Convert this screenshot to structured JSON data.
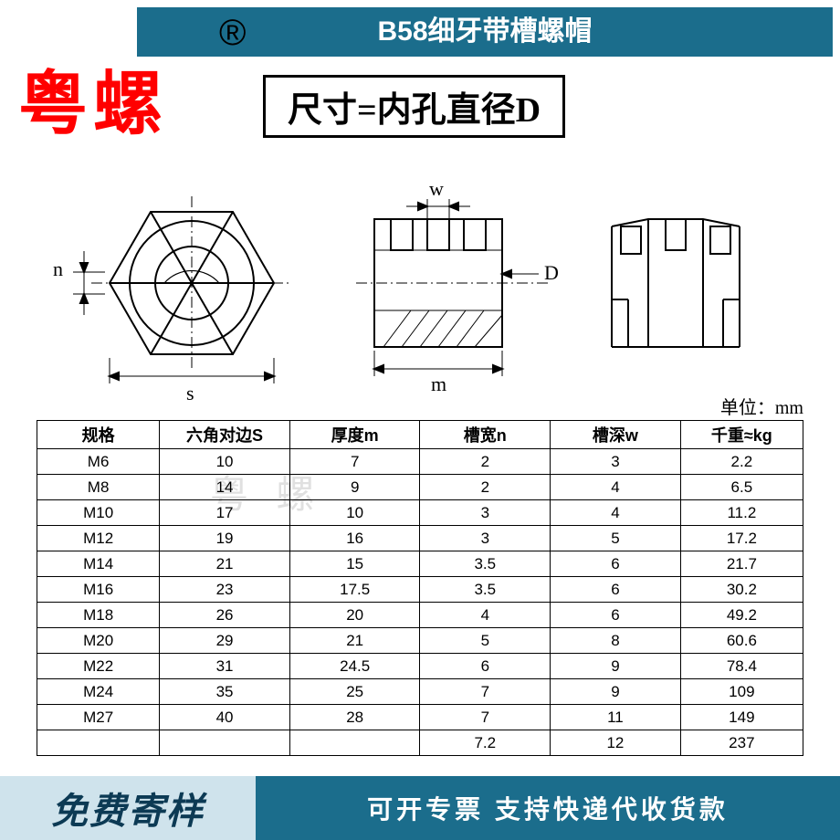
{
  "colors": {
    "header_bg": "#1b6d8c",
    "footer_left_bg": "#cfe3ec",
    "footer_left_text": "#0c3a54",
    "footer_right_bg": "#1b6d8c",
    "watermark_red": "#ff0000",
    "watermark_gray": "#e0e0e0",
    "border": "#000000"
  },
  "header": {
    "title": "B58细牙带槽螺帽",
    "reg": "®"
  },
  "watermark": {
    "red": "粤螺",
    "gray": "粤 螺"
  },
  "subtitle": "尺寸=内孔直径D",
  "diagram": {
    "labels": {
      "n": "n",
      "s": "s",
      "w": "w",
      "m": "m",
      "D": "D"
    }
  },
  "unit_label": "单位：mm",
  "table": {
    "columns": [
      "规格",
      "六角对边S",
      "厚度m",
      "槽宽n",
      "槽深w",
      "千重≈kg"
    ],
    "col_widths_pct": [
      16,
      17,
      17,
      17,
      17,
      16
    ],
    "rows": [
      [
        "M6",
        "10",
        "7",
        "2",
        "3",
        "2.2"
      ],
      [
        "M8",
        "14",
        "9",
        "2",
        "4",
        "6.5"
      ],
      [
        "M10",
        "17",
        "10",
        "3",
        "4",
        "11.2"
      ],
      [
        "M12",
        "19",
        "16",
        "3",
        "5",
        "17.2"
      ],
      [
        "M14",
        "21",
        "15",
        "3.5",
        "6",
        "21.7"
      ],
      [
        "M16",
        "23",
        "17.5",
        "3.5",
        "6",
        "30.2"
      ],
      [
        "M18",
        "26",
        "20",
        "4",
        "6",
        "49.2"
      ],
      [
        "M20",
        "29",
        "21",
        "5",
        "8",
        "60.6"
      ],
      [
        "M22",
        "31",
        "24.5",
        "6",
        "9",
        "78.4"
      ],
      [
        "M24",
        "35",
        "25",
        "7",
        "9",
        "109"
      ],
      [
        "M27",
        "40",
        "28",
        "7",
        "11",
        "149"
      ],
      [
        "",
        "",
        "",
        "7.2",
        "12",
        "237"
      ]
    ]
  },
  "footer": {
    "left": "免费寄样",
    "right": "可开专票 支持快递代收货款"
  }
}
